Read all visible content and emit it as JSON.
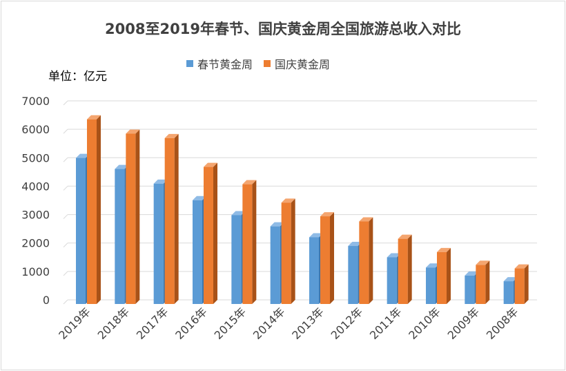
{
  "title": "2008至2019年春节、国庆黄金周全国旅游总收入对比",
  "unit_label": "单位：亿元",
  "colors": {
    "series1": "#5b9bd5",
    "series1_side": "#3e77ad",
    "series1_top": "#8fbbe6",
    "series2": "#ed7d31",
    "series2_side": "#a85218",
    "series2_top": "#f4a56f",
    "grid": "#d9d9d9"
  },
  "chart_data": {
    "type": "bar",
    "title": "2008至2019年春节、国庆黄金周全国旅游总收入对比",
    "ylabel": "单位：亿元",
    "xlabel": "",
    "ylim": [
      0,
      7000
    ],
    "yticks": [
      0,
      1000,
      2000,
      3000,
      4000,
      5000,
      6000,
      7000
    ],
    "grid": true,
    "legend_position": "top",
    "categories": [
      "2019年",
      "2018年",
      "2017年",
      "2016年",
      "2015年",
      "2014年",
      "2013年",
      "2012年",
      "2011年",
      "2010年",
      "2009年",
      "2008年"
    ],
    "series": [
      {
        "name": "春节黄金周",
        "values": [
          5139,
          4750,
          4233,
          3651,
          3124,
          2731,
          2346,
          2041,
          1641,
          1283,
          1000,
          800
        ]
      },
      {
        "name": "国庆黄金周",
        "values": [
          6497,
          5991,
          5836,
          4822,
          4213,
          3565,
          3085,
          2904,
          2294,
          1826,
          1378,
          1250
        ]
      }
    ]
  }
}
